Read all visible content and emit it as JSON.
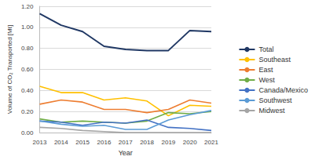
{
  "chart_data": {
    "type": "line",
    "x_label": "Year",
    "y_label": "Volume of CO₂ Transported [Mt]",
    "categories": [
      "2013",
      "2014",
      "2015",
      "2016",
      "2017",
      "2018",
      "2019",
      "2020",
      "2021"
    ],
    "series": [
      {
        "name": "Total",
        "color": "#203864",
        "values": [
          1.13,
          1.02,
          0.96,
          0.82,
          0.79,
          0.78,
          0.78,
          0.97,
          0.96
        ]
      },
      {
        "name": "Southeast",
        "color": "#ffc000",
        "values": [
          0.44,
          0.38,
          0.38,
          0.31,
          0.33,
          0.3,
          0.16,
          0.26,
          0.25
        ]
      },
      {
        "name": "East",
        "color": "#ed7d31",
        "values": [
          0.27,
          0.31,
          0.29,
          0.22,
          0.22,
          0.19,
          0.22,
          0.31,
          0.28
        ]
      },
      {
        "name": "West",
        "color": "#70ad47",
        "values": [
          0.13,
          0.1,
          0.11,
          0.1,
          0.09,
          0.11,
          0.19,
          0.18,
          0.2
        ]
      },
      {
        "name": "Canada/Mexico",
        "color": "#4472c4",
        "values": [
          0.11,
          0.1,
          0.07,
          0.1,
          0.09,
          0.12,
          0.05,
          0.04,
          0.02
        ]
      },
      {
        "name": "Southwest",
        "color": "#5b9bd5",
        "values": [
          0.11,
          0.08,
          0.06,
          0.07,
          0.03,
          0.03,
          0.12,
          0.17,
          0.21
        ]
      },
      {
        "name": "Midwest",
        "color": "#a5a5a5",
        "values": [
          0.05,
          0.04,
          0.02,
          0.01,
          0.0,
          0.0,
          0.0,
          0.0,
          0.0
        ]
      }
    ],
    "ylim": [
      0,
      1.2
    ],
    "yticks": [
      {
        "value": 0,
        "label": "0.00"
      },
      {
        "value": 0.2,
        "label": "0.20"
      },
      {
        "value": 0.4,
        "label": "0.40"
      },
      {
        "value": 0.6,
        "label": "0.60"
      },
      {
        "value": 0.8,
        "label": "0.80"
      },
      {
        "value": 1.0,
        "label": "1.00"
      },
      {
        "value": 1.2,
        "label": "1.20"
      }
    ],
    "grid": true,
    "legend": "right"
  }
}
